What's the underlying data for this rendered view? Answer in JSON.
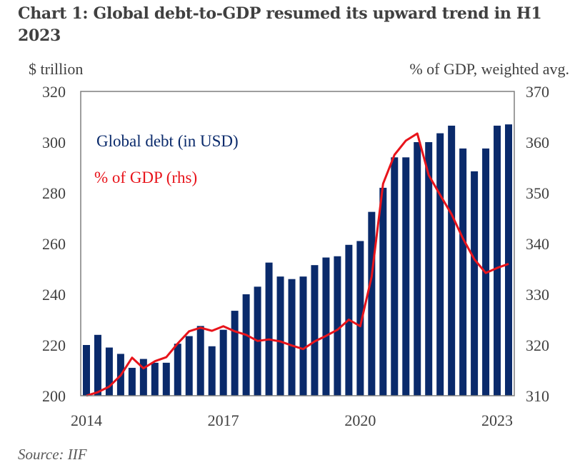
{
  "title_line1": "Chart 1: Global debt-to-GDP resumed its upward trend in H1",
  "title_line2": "2023",
  "source": "Source: IIF",
  "chart_data": {
    "type": "bar+line",
    "x": [
      "2014Q1",
      "2014Q2",
      "2014Q3",
      "2014Q4",
      "2015Q1",
      "2015Q2",
      "2015Q3",
      "2015Q4",
      "2016Q1",
      "2016Q2",
      "2016Q3",
      "2016Q4",
      "2017Q1",
      "2017Q2",
      "2017Q3",
      "2017Q4",
      "2018Q1",
      "2018Q2",
      "2018Q3",
      "2018Q4",
      "2019Q1",
      "2019Q2",
      "2019Q3",
      "2019Q4",
      "2020Q1",
      "2020Q2",
      "2020Q3",
      "2020Q4",
      "2021Q1",
      "2021Q2",
      "2021Q3",
      "2021Q4",
      "2022Q1",
      "2022Q2",
      "2022Q3",
      "2022Q4",
      "2023Q1",
      "2023Q2"
    ],
    "x_tick_labels": [
      "2014",
      "2017",
      "2020",
      "2023"
    ],
    "ylabel_left": "$ trillion",
    "ylabel_right": "% of GDP, weighted avg.",
    "ylim_left": [
      200,
      320
    ],
    "ylim_right": [
      310,
      370
    ],
    "yticks_left": [
      "200",
      "220",
      "240",
      "260",
      "280",
      "300",
      "320"
    ],
    "yticks_right": [
      "310",
      "320",
      "330",
      "340",
      "350",
      "360",
      "370"
    ],
    "legend_placement": "top-left",
    "series": [
      {
        "name": "Global debt (in USD)",
        "type": "bar",
        "axis": "left",
        "color": "#0A2A6B",
        "values": [
          220,
          224,
          219,
          216.5,
          211,
          214.5,
          213,
          213,
          220.5,
          223.5,
          227.5,
          219.5,
          226,
          233.5,
          240,
          243,
          252.5,
          247,
          246,
          247,
          251.5,
          254.5,
          255,
          259.5,
          261,
          272.5,
          282,
          294,
          294,
          300,
          300,
          303.5,
          306.5,
          297.5,
          288.5,
          297.5,
          306.5,
          307
        ]
      },
      {
        "name": "% of GDP (rhs)",
        "type": "line",
        "axis": "right",
        "color": "#E8141B",
        "values": [
          310,
          310.7,
          311.8,
          314,
          317.5,
          315.4,
          316.8,
          317.6,
          320.3,
          322.7,
          323.4,
          322.8,
          323.7,
          322.7,
          322,
          320.8,
          321.1,
          320.7,
          319.9,
          319.2,
          320.7,
          321.8,
          323,
          325,
          323.7,
          333.5,
          351.8,
          357.5,
          360.3,
          361.7,
          353.5,
          349.6,
          345.8,
          341,
          336.9,
          334.2,
          335.2,
          336
        ]
      }
    ]
  }
}
